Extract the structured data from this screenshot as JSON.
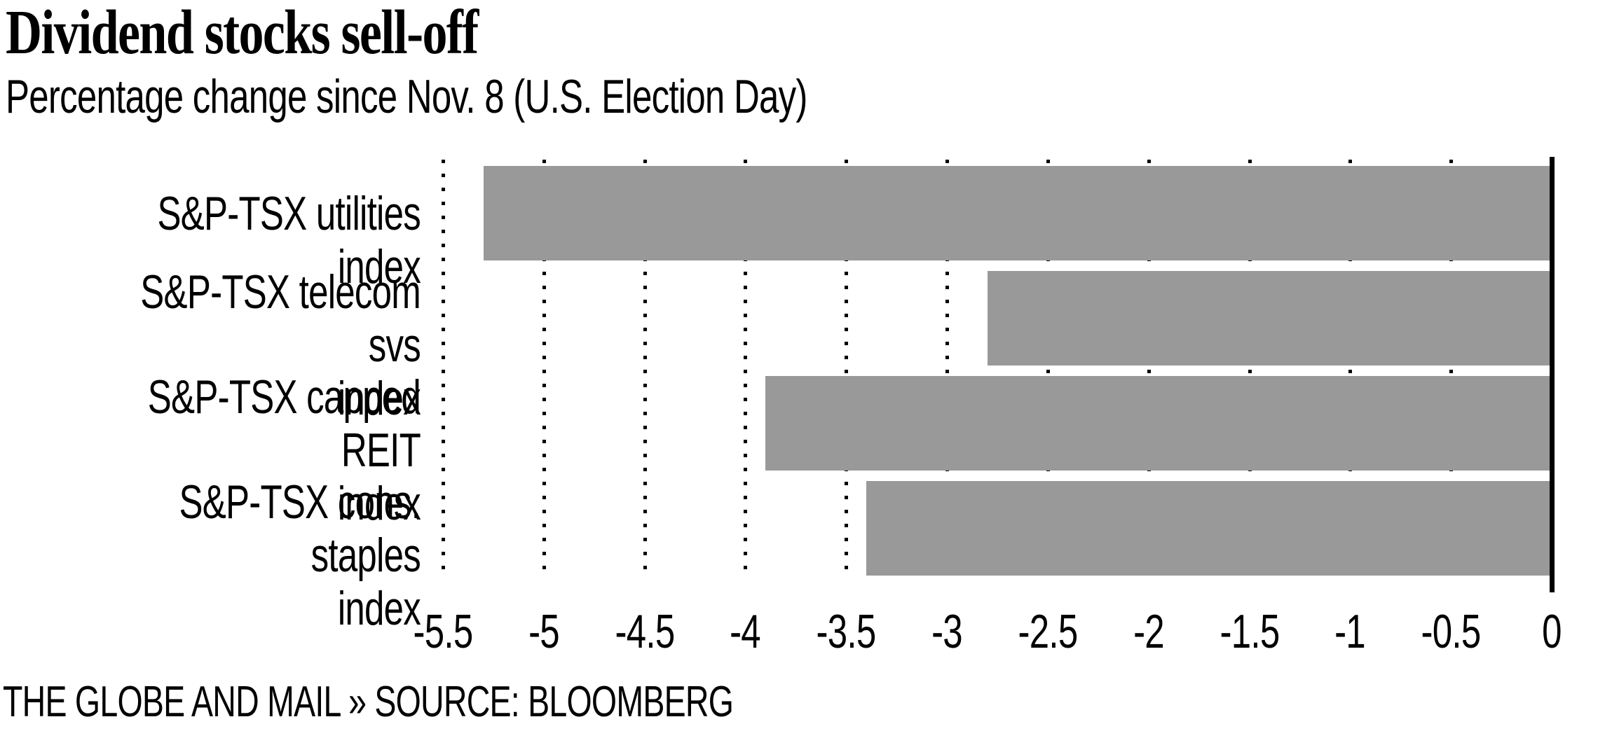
{
  "page": {
    "background": "#ffffff"
  },
  "chart_data": {
    "type": "bar",
    "orientation": "horizontal",
    "title": "Dividend stocks sell-off",
    "subtitle": "Percentage change since Nov. 8 (U.S. Election Day)",
    "categories": [
      "S&P-TSX utilities index",
      "S&P-TSX telecom svs index",
      "S&P-TSX capped REIT index",
      "S&P-TSX cons. staples index"
    ],
    "category_lines": [
      [
        "S&P-TSX utilities index"
      ],
      [
        "S&P-TSX telecom svs",
        "index"
      ],
      [
        "S&P-TSX capped REIT",
        "index"
      ],
      [
        "S&P-TSX cons. staples",
        "index"
      ]
    ],
    "values": [
      -5.3,
      -2.8,
      -3.9,
      -3.4
    ],
    "unit": "percent change",
    "xlim": [
      -5.5,
      0
    ],
    "ticks": [
      -5.5,
      -5,
      -4.5,
      -4,
      -3.5,
      -3,
      -2.5,
      -2,
      -1.5,
      -1,
      -0.5,
      0
    ],
    "tick_labels": [
      "-5.5",
      "-5",
      "-4.5",
      "-4",
      "-3.5",
      "-3",
      "-2.5",
      "-2",
      "-1.5",
      "-1",
      "-0.5",
      "0"
    ],
    "grid": "dotted-vertical",
    "legend": "none",
    "bar_color": "#999999",
    "axis_color": "#000000",
    "grid_color": "#000000",
    "text_color": "#000000"
  },
  "footer": {
    "text": "THE GLOBE AND MAIL » SOURCE: BLOOMBERG"
  }
}
